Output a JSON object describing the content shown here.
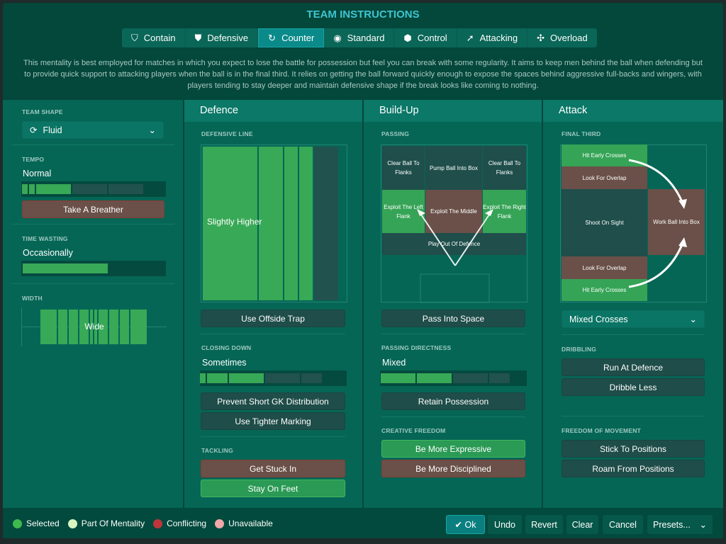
{
  "title": "TEAM INSTRUCTIONS",
  "tabs": [
    {
      "label": "Contain",
      "icon": "shield-double-icon"
    },
    {
      "label": "Defensive",
      "icon": "shield-icon"
    },
    {
      "label": "Counter",
      "icon": "counter-arrow-icon",
      "active": true
    },
    {
      "label": "Standard",
      "icon": "circle-icon"
    },
    {
      "label": "Control",
      "icon": "control-icon"
    },
    {
      "label": "Attacking",
      "icon": "attack-arrow-icon"
    },
    {
      "label": "Overload",
      "icon": "overload-icon"
    }
  ],
  "description": "This mentality is best employed for matches in which you expect to lose the battle for possession but feel you can break with some regularity.  It aims to keep men behind the ball when defending but to provide quick support to attacking players when the ball is in the final third. It relies on getting the ball forward quickly enough to expose the spaces behind aggressive full-backs and wingers, with players tending to stay deeper and maintain defensive shape if the break looks like coming to nothing.",
  "left": {
    "team_shape_label": "TEAM SHAPE",
    "team_shape": "Fluid",
    "tempo_label": "TEMPO",
    "tempo": "Normal",
    "tempo_level": 0.4,
    "tempo_button": "Take A Breather",
    "time_wasting_label": "TIME WASTING",
    "time_wasting": "Occasionally",
    "time_wasting_level": 0.6,
    "width_label": "WIDTH",
    "width": "Wide"
  },
  "defence": {
    "title": "Defence",
    "line_label": "DEFENSIVE LINE",
    "line": "Slightly Higher",
    "offside": "Use Offside Trap",
    "closing_label": "CLOSING DOWN",
    "closing": "Sometimes",
    "closing_level": 0.4,
    "buttons": [
      "Prevent Short GK Distribution",
      "Use Tighter Marking"
    ],
    "tackling_label": "TACKLING",
    "tackling": [
      {
        "label": "Get Stuck In",
        "state": "conflicting"
      },
      {
        "label": "Stay On Feet",
        "state": "selected"
      }
    ]
  },
  "buildup": {
    "title": "Build-Up",
    "passing_label": "PASSING",
    "cells": {
      "clear_left": "Clear Ball To Flanks",
      "pump": "Pump Ball Into Box",
      "clear_right": "Clear Ball To Flanks",
      "exploit_left": "Exploit The Left Flank",
      "exploit_middle": "Exploit The Middle",
      "exploit_right": "Exploit The Right Flank",
      "play_out": "Play Out Of Defence"
    },
    "pass_space": "Pass Into Space",
    "directness_label": "PASSING DIRECTNESS",
    "directness": "Mixed",
    "directness_level": 0.4,
    "retain": "Retain Possession",
    "creative_label": "CREATIVE FREEDOM",
    "creative": [
      {
        "label": "Be More Expressive",
        "state": "selected"
      },
      {
        "label": "Be More Disciplined",
        "state": "conflicting"
      }
    ]
  },
  "attack": {
    "title": "Attack",
    "final_label": "FINAL THIRD",
    "cells": {
      "hit_top": "Hit Early Crosses",
      "overlap_top": "Look For Overlap",
      "shoot": "Shoot On Sight",
      "work": "Work Ball Into Box",
      "overlap_bottom": "Look For Overlap",
      "hit_bottom": "Hit Early Crosses"
    },
    "crosses": "Mixed Crosses",
    "dribbling_label": "DRIBBLING",
    "dribbling": [
      "Run At Defence",
      "Dribble Less"
    ],
    "freedom_label": "FREEDOM OF MOVEMENT",
    "freedom": [
      "Stick To Positions",
      "Roam From Positions"
    ]
  },
  "legend": [
    {
      "label": "Selected",
      "color": "#3fb94f"
    },
    {
      "label": "Part Of Mentality",
      "color": "#d8f5c0"
    },
    {
      "label": "Conflicting",
      "color": "#c0353a"
    },
    {
      "label": "Unavailable",
      "color": "#f0a8a8"
    }
  ],
  "footer": {
    "ok": "Ok",
    "undo": "Undo",
    "revert": "Revert",
    "clear": "Clear",
    "cancel": "Cancel",
    "presets": "Presets..."
  }
}
